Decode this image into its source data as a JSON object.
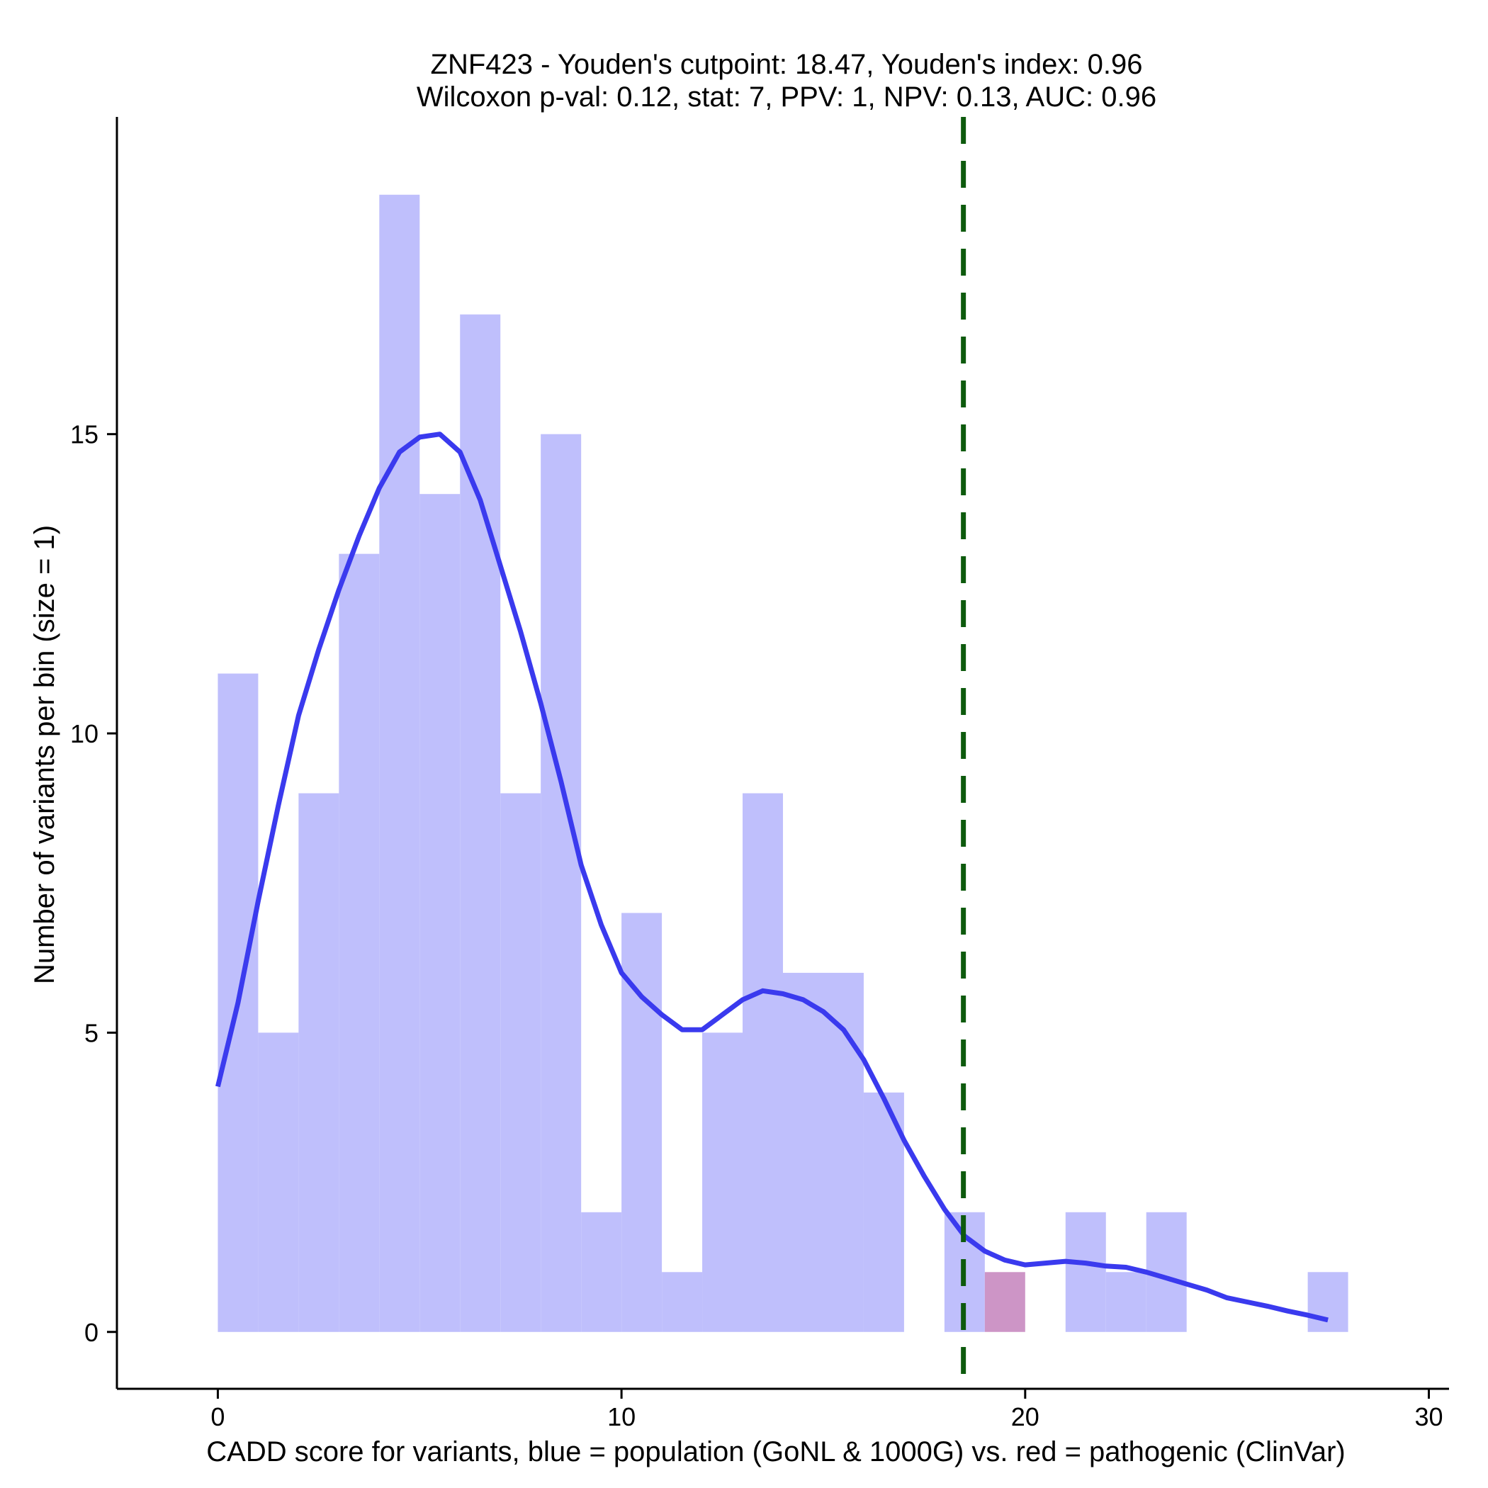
{
  "chart_data": {
    "type": "bar",
    "title_line1": "ZNF423 - Youden's cutpoint: 18.47, Youden's index: 0.96",
    "title_line2": "Wilcoxon p-val: 0.12, stat: 7, PPV: 1, NPV: 0.13, AUC: 0.96",
    "xlabel": "CADD score for variants, blue = population (GoNL & 1000G) vs. red = pathogenic (ClinVar)",
    "ylabel": "Number of variants per bin (size = 1)",
    "xlim": [
      -2.5,
      30.5
    ],
    "ylim": [
      -0.95,
      20.3
    ],
    "x_ticks": [
      0,
      10,
      20,
      30
    ],
    "y_ticks": [
      0,
      5,
      10,
      15
    ],
    "bin_width": 1,
    "cutpoint": 18.47,
    "colors": {
      "population": "#bfbffc",
      "pathogenic": "#cd95c6",
      "density": "#3a3aee",
      "cutpoint": "#0d5a0d"
    },
    "series": [
      {
        "name": "population",
        "bins": [
          {
            "x0": 0,
            "count": 11
          },
          {
            "x0": 1,
            "count": 5
          },
          {
            "x0": 2,
            "count": 9
          },
          {
            "x0": 3,
            "count": 13
          },
          {
            "x0": 4,
            "count": 19
          },
          {
            "x0": 5,
            "count": 14
          },
          {
            "x0": 6,
            "count": 17
          },
          {
            "x0": 7,
            "count": 9
          },
          {
            "x0": 8,
            "count": 15
          },
          {
            "x0": 9,
            "count": 2
          },
          {
            "x0": 10,
            "count": 7
          },
          {
            "x0": 11,
            "count": 1
          },
          {
            "x0": 12,
            "count": 5
          },
          {
            "x0": 13,
            "count": 9
          },
          {
            "x0": 14,
            "count": 6
          },
          {
            "x0": 15,
            "count": 6
          },
          {
            "x0": 16,
            "count": 4
          },
          {
            "x0": 18,
            "count": 2
          },
          {
            "x0": 21,
            "count": 2
          },
          {
            "x0": 22,
            "count": 1
          },
          {
            "x0": 23,
            "count": 2
          },
          {
            "x0": 27,
            "count": 1
          }
        ]
      },
      {
        "name": "pathogenic",
        "bins": [
          {
            "x0": 19,
            "count": 1
          }
        ]
      }
    ],
    "density_curve": [
      [
        0.0,
        4.1
      ],
      [
        0.5,
        5.5
      ],
      [
        1.0,
        7.2
      ],
      [
        1.5,
        8.8
      ],
      [
        2.0,
        10.3
      ],
      [
        2.5,
        11.4
      ],
      [
        3.0,
        12.4
      ],
      [
        3.5,
        13.3
      ],
      [
        4.0,
        14.1
      ],
      [
        4.5,
        14.7
      ],
      [
        5.0,
        14.95
      ],
      [
        5.5,
        15.0
      ],
      [
        6.0,
        14.7
      ],
      [
        6.5,
        13.9
      ],
      [
        7.0,
        12.8
      ],
      [
        7.5,
        11.7
      ],
      [
        8.0,
        10.5
      ],
      [
        8.5,
        9.2
      ],
      [
        9.0,
        7.8
      ],
      [
        9.5,
        6.8
      ],
      [
        10.0,
        6.0
      ],
      [
        10.5,
        5.6
      ],
      [
        11.0,
        5.3
      ],
      [
        11.5,
        5.05
      ],
      [
        12.0,
        5.05
      ],
      [
        12.5,
        5.3
      ],
      [
        13.0,
        5.55
      ],
      [
        13.5,
        5.7
      ],
      [
        14.0,
        5.65
      ],
      [
        14.5,
        5.55
      ],
      [
        15.0,
        5.35
      ],
      [
        15.5,
        5.05
      ],
      [
        16.0,
        4.55
      ],
      [
        16.5,
        3.9
      ],
      [
        17.0,
        3.2
      ],
      [
        17.5,
        2.6
      ],
      [
        18.0,
        2.05
      ],
      [
        18.5,
        1.6
      ],
      [
        19.0,
        1.35
      ],
      [
        19.5,
        1.2
      ],
      [
        20.0,
        1.12
      ],
      [
        20.5,
        1.15
      ],
      [
        21.0,
        1.18
      ],
      [
        21.5,
        1.15
      ],
      [
        22.0,
        1.1
      ],
      [
        22.5,
        1.08
      ],
      [
        23.0,
        1.0
      ],
      [
        23.5,
        0.9
      ],
      [
        24.0,
        0.8
      ],
      [
        24.5,
        0.7
      ],
      [
        25.0,
        0.57
      ],
      [
        25.5,
        0.5
      ],
      [
        26.0,
        0.43
      ],
      [
        26.5,
        0.35
      ],
      [
        27.0,
        0.28
      ],
      [
        27.5,
        0.2
      ]
    ]
  }
}
